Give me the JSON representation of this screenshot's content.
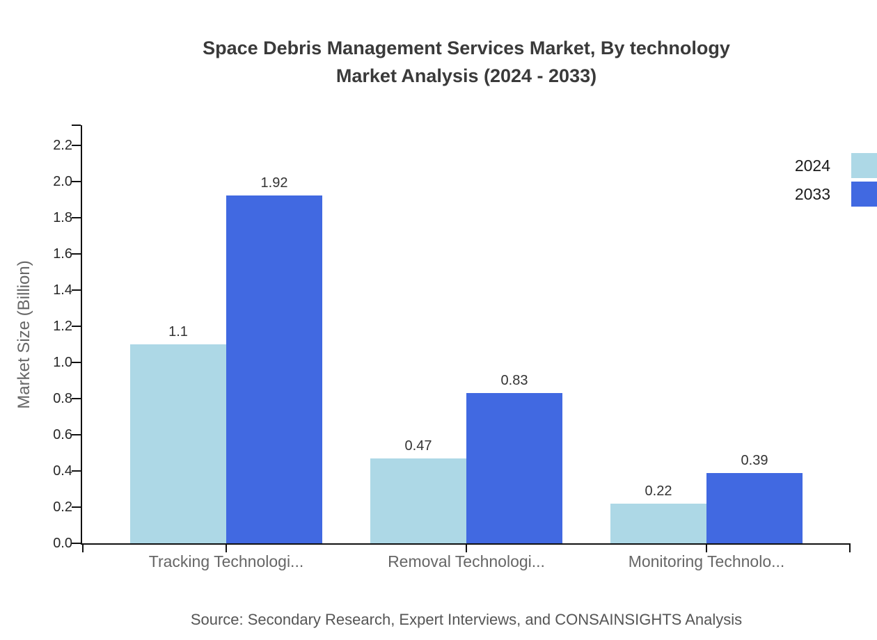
{
  "title": {
    "line1": "Space Debris Management Services Market, By technology",
    "line2": "Market Analysis (2024 - 2033)"
  },
  "axis": {
    "ylabel": "Market Size (Billion)"
  },
  "legend": {
    "items": [
      {
        "label": "2024",
        "color": "#ADD8E6"
      },
      {
        "label": "2033",
        "color": "#4169E1"
      }
    ]
  },
  "source": {
    "text": "Source: Secondary Research, Expert Interviews, and CONSAINSIGHTS Analysis"
  },
  "chart_data": {
    "type": "bar",
    "title": "Space Debris Management Services Market, By technology Market Analysis (2024 - 2033)",
    "categories": [
      "Tracking Technologi...",
      "Removal Technologi...",
      "Monitoring Technolo..."
    ],
    "series": [
      {
        "name": "2024",
        "color": "#ADD8E6",
        "values": [
          1.1,
          0.47,
          0.22
        ],
        "labels": [
          "1.1",
          "0.47",
          "0.22"
        ]
      },
      {
        "name": "2033",
        "color": "#4169E1",
        "values": [
          1.92,
          0.83,
          0.39
        ],
        "labels": [
          "1.92",
          "0.83",
          "0.39"
        ]
      }
    ],
    "xlabel": "",
    "ylabel": "Market Size (Billion)",
    "ylim": [
      0,
      2.31
    ],
    "yticks": [
      "0.0",
      "0.2",
      "0.4",
      "0.6",
      "0.8",
      "1.0",
      "1.2",
      "1.4",
      "1.6",
      "1.8",
      "2.0",
      "2.2"
    ],
    "bar_width_units": 0.4,
    "x_edge_padding_units": 0.6,
    "grid": false,
    "legend_position": "upper-right-outside"
  },
  "colors": {
    "background": "#ffffff",
    "axis_line": "#111111",
    "tick_label": "#262626",
    "value_label": "#333333",
    "category_label": "#666666",
    "ylabel": "#666666",
    "title": "#3a3a3a",
    "source": "#555555",
    "legend_text": "#1a1a1a"
  }
}
